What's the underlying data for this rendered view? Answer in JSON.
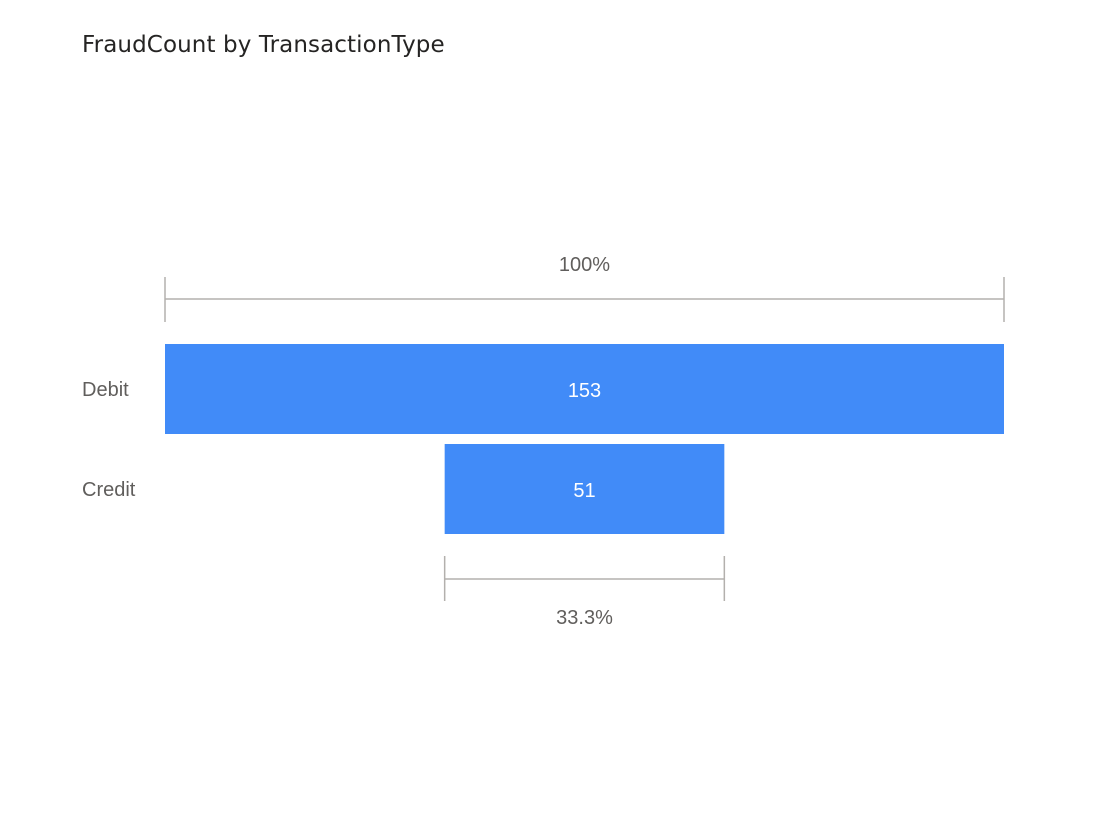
{
  "chart_data": {
    "type": "funnel",
    "title": "FraudCount by TransactionType",
    "categories": [
      "Debit",
      "Credit"
    ],
    "values": [
      153,
      51
    ],
    "data_labels": [
      "153",
      "51"
    ],
    "first_stage_percent_label": "100%",
    "last_stage_percent_label": "33.3%",
    "colors": {
      "bar": "#418BF8",
      "bracket": "#B3B0AD",
      "category_text": "#605E5C",
      "value_text": "#FFFFFF",
      "title_text": "#252423"
    }
  }
}
